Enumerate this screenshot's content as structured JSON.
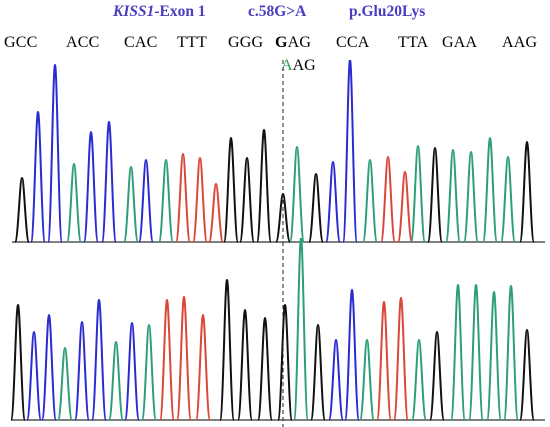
{
  "title": {
    "gene": "KISS1",
    "exon": "-Exon 1",
    "cdna_change": "c.58G>A",
    "protein_change": "p.Glu20Lys"
  },
  "reference_codons": [
    {
      "text": "GCC"
    },
    {
      "text": "ACC"
    },
    {
      "text": "CAC"
    },
    {
      "text": "TTT"
    },
    {
      "text": "GGG"
    },
    {
      "text": "GAG",
      "highlight_first": true
    },
    {
      "text": "CCA"
    },
    {
      "text": "TTA"
    },
    {
      "text": "GAA"
    },
    {
      "text": "AAG"
    }
  ],
  "mutant_codon": {
    "first_base": "A",
    "rest": "AG"
  },
  "base_colors": {
    "A": "#2e9e7a",
    "C": "#2b2bd1",
    "G": "#111111",
    "T": "#d9473b"
  },
  "marker_line": "dashed"
}
